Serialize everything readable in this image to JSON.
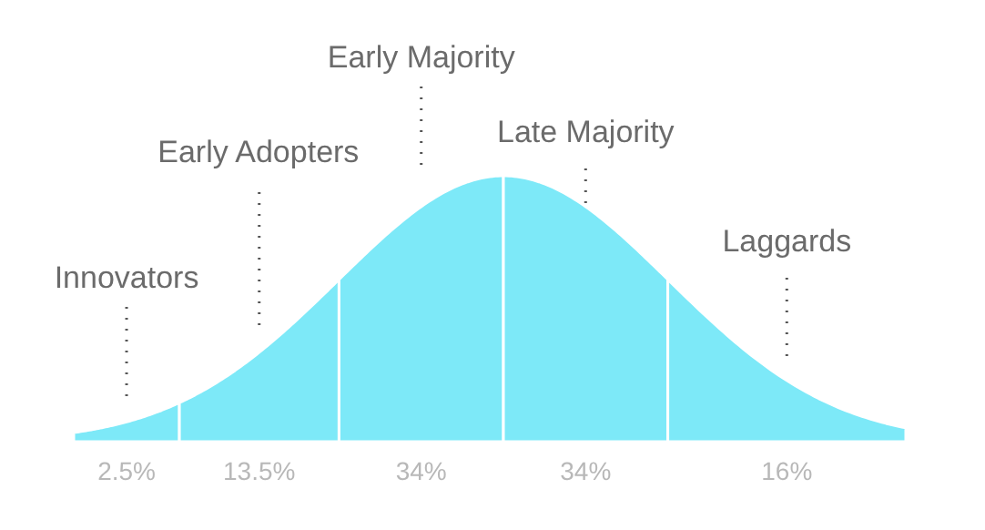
{
  "chart_data": {
    "type": "other",
    "categories": [
      "Innovators",
      "Early Adopters",
      "Early Majority",
      "Late Majority",
      "Laggards"
    ],
    "values": [
      2.5,
      13.5,
      34,
      34,
      16
    ],
    "value_labels": [
      "2.5%",
      "13.5%",
      "34%",
      "34%",
      "16%"
    ],
    "colors": [
      "#7de9f8",
      "#7de9f8",
      "#7de9f8",
      "#7de9f8",
      "#7de9f8"
    ]
  }
}
